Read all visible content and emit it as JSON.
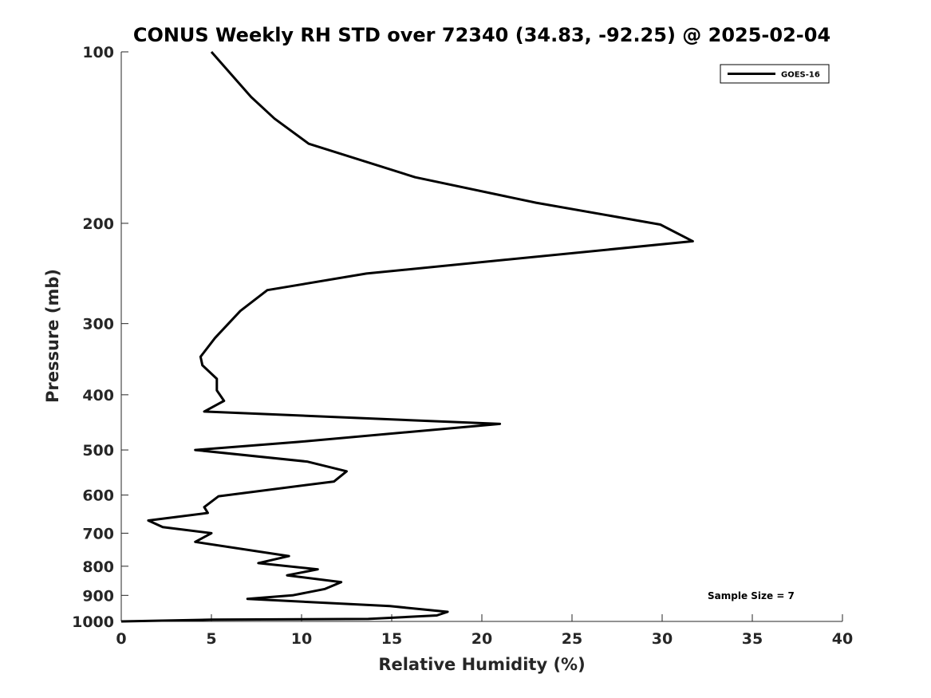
{
  "chart_data": {
    "type": "line",
    "title": "CONUS Weekly RH STD over 72340 (34.83, -92.25) @ 2025-02-04",
    "xlabel": "Relative Humidity (%)",
    "ylabel": "Pressure (mb)",
    "xlim": [
      0,
      40
    ],
    "ylim": [
      100,
      1000
    ],
    "y_scale": "log",
    "y_reversed": true,
    "x_ticks": [
      "0",
      "5",
      "10",
      "15",
      "20",
      "25",
      "30",
      "35",
      "40"
    ],
    "y_ticks": [
      "100",
      "200",
      "300",
      "400",
      "500",
      "600",
      "700",
      "800",
      "900",
      "1000"
    ],
    "legend_position": "top-right",
    "grid": false,
    "series": [
      {
        "name": "GOES-16",
        "color": "#000000",
        "x": [
          5.0,
          7.2,
          8.5,
          10.4,
          16.3,
          23.0,
          29.9,
          31.7,
          13.6,
          8.1,
          6.6,
          5.2,
          4.4,
          4.5,
          5.3,
          5.3,
          5.7,
          4.6,
          21.0,
          9.8,
          4.1,
          10.3,
          12.5,
          11.8,
          5.4,
          4.6,
          4.8,
          1.5,
          2.3,
          5.0,
          4.1,
          9.3,
          7.6,
          10.9,
          9.2,
          12.2,
          11.3,
          9.5,
          7.0,
          14.9,
          18.1,
          17.5,
          13.7,
          5.0,
          0.0
        ],
        "y": [
          100,
          120,
          131,
          145,
          166,
          184,
          201,
          215,
          245,
          262,
          285,
          318,
          343,
          355,
          375,
          393,
          410,
          428,
          450,
          484,
          500,
          524,
          545,
          568,
          603,
          630,
          645,
          665,
          683,
          700,
          725,
          768,
          790,
          810,
          830,
          853,
          877,
          900,
          913,
          940,
          962,
          976,
          990,
          993,
          1000
        ]
      }
    ],
    "annotations": [
      "Sample Size = 7"
    ]
  }
}
